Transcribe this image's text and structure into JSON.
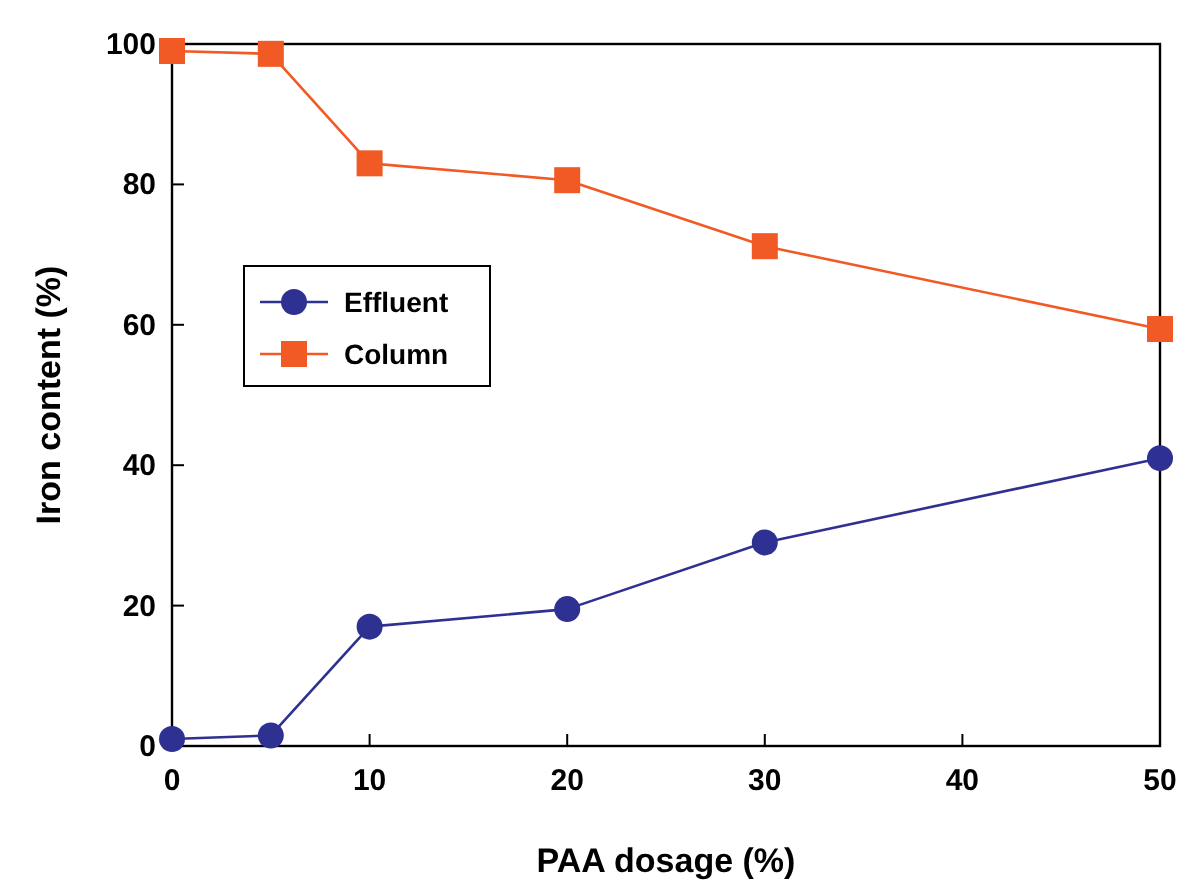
{
  "chart_data": {
    "type": "line",
    "xlabel": "PAA dosage (%)",
    "ylabel": "Iron content (%)",
    "x": [
      0,
      5,
      10,
      20,
      30,
      50
    ],
    "xlim": [
      0,
      50
    ],
    "xticks": [
      0,
      10,
      20,
      30,
      40,
      50
    ],
    "ylim": [
      0,
      100
    ],
    "yticks": [
      0,
      20,
      40,
      60,
      80,
      100
    ],
    "grid": false,
    "legend": "left",
    "line_style": "solid",
    "series": [
      {
        "name": "Effluent",
        "color": "#2e3192",
        "marker": "circle",
        "values": [
          1,
          1.5,
          17,
          19.5,
          29,
          41
        ]
      },
      {
        "name": "Column",
        "color": "#f15a24",
        "marker": "square",
        "values": [
          99,
          98.6,
          83,
          80.6,
          71.2,
          59.4
        ]
      }
    ]
  }
}
